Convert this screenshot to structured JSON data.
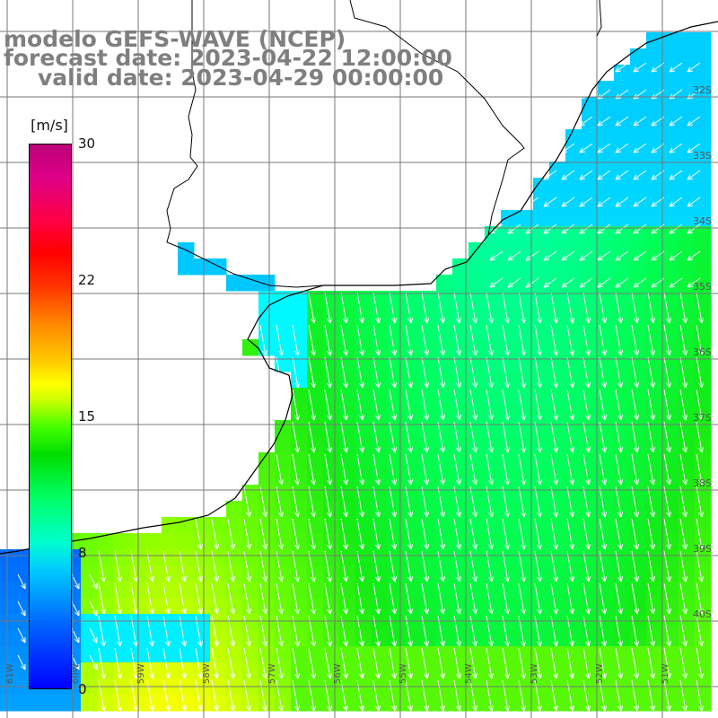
{
  "title": {
    "line1": "modelo GEFS-WAVE (NCEP)",
    "line2": "forecast date: 2023-04-22 12:00:00",
    "line3": "valid date: 2023-04-29 00:00:00"
  },
  "colorbar": {
    "unit": "[m/s]",
    "ticks": [
      "30",
      "22",
      "15",
      "8",
      "0"
    ],
    "tick_values": [
      30,
      22,
      15,
      8,
      0
    ],
    "colors": {
      "0": "#0000ff",
      "8": "#00ffff",
      "15": "#ffff00",
      "22": "#ff0000",
      "30": "#bb0077"
    }
  },
  "map": {
    "land_color": "#ffffff",
    "coast_color": "#000000",
    "grid_color": "#777777",
    "arrow_color": "#ffffff",
    "lat_labels": [
      "32S",
      "33S",
      "34S",
      "35S",
      "36S",
      "37S",
      "38S",
      "39S",
      "40S"
    ],
    "lon_labels": [
      "61W",
      "60W",
      "59W",
      "58W",
      "57W",
      "56W",
      "55W",
      "54W",
      "53W",
      "52W",
      "51W"
    ],
    "wind_direction": "southward, turning south-westward toward the north-east of the domain"
  }
}
